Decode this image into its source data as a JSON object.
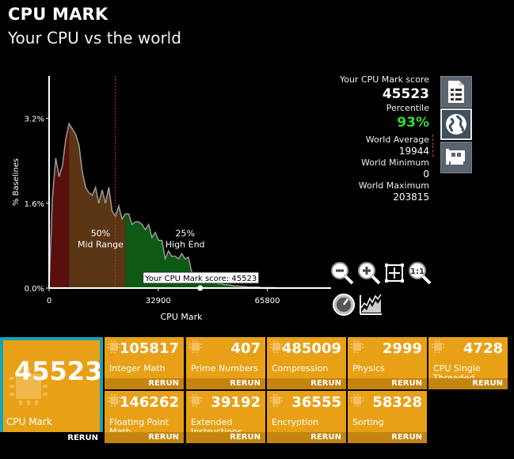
{
  "header": {
    "title": "CPU MARK",
    "subtitle": "Your CPU vs the world"
  },
  "chart_data": {
    "type": "area",
    "ylabel": "% Baselines",
    "xlabel": "CPU Mark",
    "x_ticks": [
      "0",
      "32900",
      "65800"
    ],
    "y_ticks": [
      "0.0%",
      "1.6%",
      "3.2%"
    ],
    "xlim": [
      0,
      85000
    ],
    "ylim": [
      0,
      4.0
    ],
    "your_score": 45523,
    "your_score_label": "Your CPU Mark score: 45523",
    "world_average": 19944,
    "annotations": [
      {
        "label": "50%",
        "label2": "Mid Range"
      },
      {
        "label": "25%",
        "label2": "High End"
      }
    ],
    "series": [
      {
        "x": [
          0,
          1000,
          2000,
          3000,
          4000,
          5000,
          6000,
          7000,
          8000,
          9000,
          10000,
          11000,
          12000,
          13000,
          14000,
          15000,
          16000,
          17000,
          18000,
          19000,
          20000,
          21000,
          22000,
          23000,
          24000,
          25000,
          26000,
          27000,
          28000,
          29000,
          30000,
          31000,
          32000,
          33000,
          34000,
          35000,
          36000,
          37000,
          38000,
          39000,
          40000,
          41000,
          42000,
          43000,
          44000,
          45000,
          46000,
          47000,
          48000,
          49000,
          50000,
          51000,
          52000,
          53000,
          54000,
          55000,
          56000,
          57000,
          58000,
          59000,
          60000,
          61000,
          62000,
          63000,
          64000,
          65000,
          66000,
          67000,
          68000,
          69000,
          70000
        ],
        "y": [
          0,
          1.7,
          2.45,
          2.1,
          2.3,
          2.8,
          3.1,
          3.0,
          2.9,
          2.7,
          2.2,
          1.9,
          1.8,
          1.75,
          1.9,
          1.6,
          1.85,
          1.6,
          1.9,
          1.45,
          1.35,
          1.55,
          1.3,
          1.4,
          1.4,
          1.2,
          1.25,
          1.25,
          1.2,
          1.1,
          1.2,
          0.95,
          1.05,
          0.9,
          0.9,
          0.55,
          0.7,
          0.6,
          0.6,
          0.55,
          0.65,
          0.55,
          0.58,
          0.3,
          0.25,
          0.18,
          0.22,
          0.12,
          0.15,
          0.12,
          0.12,
          0.08,
          0.08,
          0.06,
          0.06,
          0.05,
          0.04,
          0.04,
          0.03,
          0.03,
          0.02,
          0.02,
          0.02,
          0.02,
          0.01,
          0.01,
          0.01,
          0.01,
          0.01,
          0.0,
          0.0
        ]
      }
    ]
  },
  "score_panel": {
    "your_score_label": "Your CPU Mark score",
    "your_score": "45523",
    "percentile_label": "Percentile",
    "percentile": "93%",
    "world_average_label": "World Average",
    "world_average": "19944",
    "world_minimum_label": "World Minimum",
    "world_minimum": "0",
    "world_maximum_label": "World Maximum",
    "world_maximum": "203815"
  },
  "main_tile": {
    "score": "45523",
    "label": "CPU Mark",
    "rerun": "RERUN"
  },
  "tests": [
    {
      "value": "105817",
      "label": "Integer Math",
      "rerun": "RERUN"
    },
    {
      "value": "407",
      "label": "Prime Numbers",
      "rerun": "RERUN"
    },
    {
      "value": "485009",
      "label": "Compression",
      "rerun": "RERUN"
    },
    {
      "value": "2999",
      "label": "Physics",
      "rerun": "RERUN"
    },
    {
      "value": "4728",
      "label": "CPU Single Threaded",
      "rerun": "RERUN"
    },
    {
      "value": "146262",
      "label": "Floating Point Math",
      "rerun": "RERUN"
    },
    {
      "value": "39192",
      "label": "Extended Instructions (SSE)",
      "rerun": "RERUN"
    },
    {
      "value": "36555",
      "label": "Encryption",
      "rerun": "RERUN"
    },
    {
      "value": "58328",
      "label": "Sorting",
      "rerun": "RERUN"
    }
  ],
  "colors": {
    "tile": "#e8a117",
    "tile_footer": "#c48410",
    "accent": "#14a3b8",
    "low_band": "#5a0f0f",
    "mid_band": "#5a3514",
    "high_band": "#0d5a14",
    "percentile": "#33dd33"
  },
  "icons": [
    "document-icon",
    "globe-icon",
    "hardware-card-icon",
    "zoom-out-icon",
    "zoom-in-icon",
    "fit-icon",
    "zoom-reset-icon",
    "gauge-icon",
    "chart-icon"
  ]
}
